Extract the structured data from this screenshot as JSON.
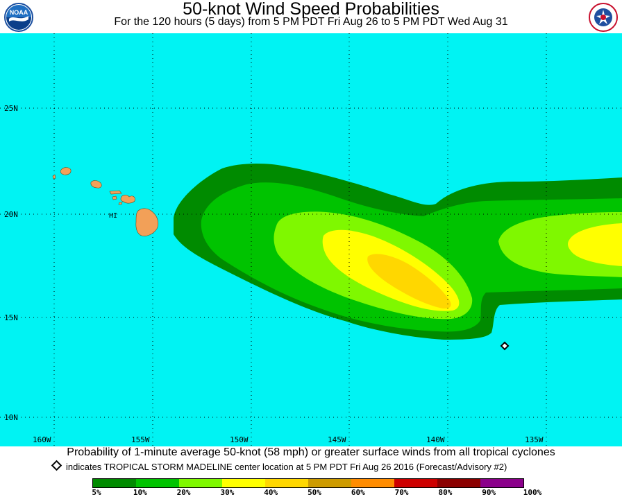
{
  "header": {
    "title": "50-knot Wind Speed Probabilities",
    "subtitle": "For the 120 hours (5 days) from 5 PM PDT Fri Aug 26 to 5 PM PDT Wed Aug 31"
  },
  "logos": {
    "left": "NOAA",
    "right": "NATIONAL WEATHER SERVICE"
  },
  "map": {
    "ocean_color": "#00f3f3",
    "land_color": "#f2a058",
    "island_label": "HI",
    "lat_labels": [
      "25N",
      "20N",
      "15N",
      "10N"
    ],
    "lon_labels": [
      "160W",
      "155W",
      "150W",
      "145W",
      "140W",
      "135W"
    ],
    "storm_marker": "diamond-icon"
  },
  "footer": {
    "caption": "Probability of 1-minute average 50-knot (58 mph) or greater surface winds from all tropical cyclones",
    "legend_note": "indicates TROPICAL STORM MADELINE center location at 5 PM PDT Fri Aug 26 2016 (Forecast/Advisory #2)"
  },
  "colorbar": {
    "colors": [
      "#008b00",
      "#00c300",
      "#7ff800",
      "#ffff00",
      "#ffd700",
      "#cd9b00",
      "#ff8c00",
      "#cd0000",
      "#8b0000",
      "#8b008b"
    ],
    "labels": [
      "5%",
      "10%",
      "20%",
      "30%",
      "40%",
      "50%",
      "60%",
      "70%",
      "80%",
      "90%",
      "100%"
    ]
  }
}
